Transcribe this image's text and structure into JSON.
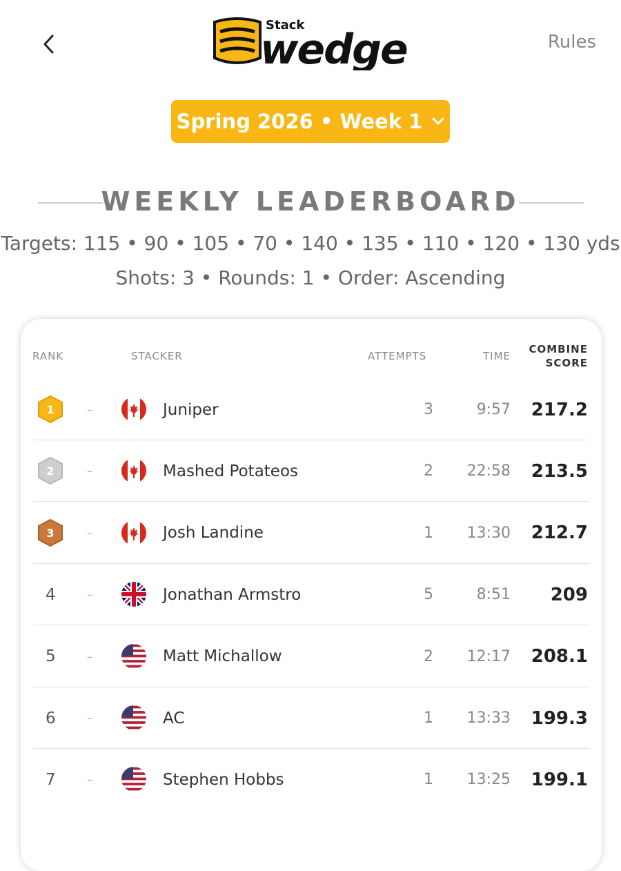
{
  "header": {
    "brand_small": "Stack",
    "brand": "wedge",
    "rules_link": "Rules"
  },
  "selector": {
    "label": "Spring 2026 • Week 1"
  },
  "leaderboard": {
    "title": "WEEKLY LEADERBOARD",
    "targets": "Targets: 115 • 90 • 105 • 70 • 140 • 135 • 110 • 120 • 130 yds",
    "settings": "Shots: 3 • Rounds: 1 • Order: Ascending",
    "columns": [
      "RANK",
      "STACKER",
      "ATTEMPTS",
      "TIME",
      "COMBINE SCORE"
    ],
    "rows": [
      {
        "rank": 1,
        "change": "–",
        "name": "Juniper",
        "attempts": 3,
        "time": "9:57",
        "score": 217.2
      },
      {
        "rank": 2,
        "change": "–",
        "name": "Mashed Potateos",
        "attempts": 2,
        "time": "22:58",
        "score": 213.5
      },
      {
        "rank": 3,
        "change": "–",
        "name": "Josh Landine",
        "attempts": 1,
        "time": "13:30",
        "score": 212.7
      },
      {
        "rank": 4,
        "change": "–",
        "name": "Jonathan Armstro",
        "attempts": 5,
        "time": "8:51",
        "score": 209
      },
      {
        "rank": 5,
        "change": "–",
        "name": "Matt Michallow",
        "attempts": 2,
        "time": "12:17",
        "score": 208.1
      },
      {
        "rank": 6,
        "change": "–",
        "name": "AC",
        "attempts": 1,
        "time": "13:33",
        "score": 199.3
      },
      {
        "rank": 7,
        "change": "–",
        "name": "Stephen Hobbs",
        "attempts": 1,
        "time": "13:25",
        "score": 199.1
      }
    ]
  }
}
